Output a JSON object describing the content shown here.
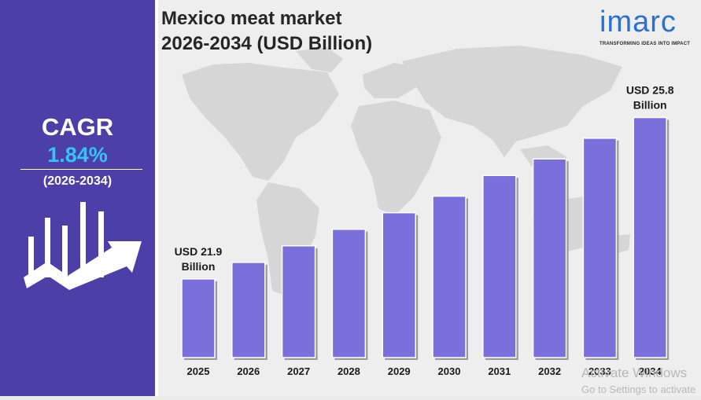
{
  "title_line1": "Mexico meat market",
  "title_line2": "2026-2034 (USD Billion)",
  "cagr": {
    "label": "CAGR",
    "value": "1.84%",
    "period": "(2026-2034)"
  },
  "logo": {
    "name": "imarc",
    "tagline": "TRANSFORMING IDEAS INTO IMPACT"
  },
  "watermark": {
    "line1": "Activate Windows",
    "line2": "Go to Settings to activate"
  },
  "colors": {
    "panel": "#4d3fa8",
    "bar": "#7b6fdb",
    "cagr_value": "#34c5f0",
    "logo": "#2c6fd1"
  },
  "chart_data": {
    "type": "bar",
    "categories": [
      "2025",
      "2026",
      "2027",
      "2028",
      "2029",
      "2030",
      "2031",
      "2032",
      "2033",
      "2034"
    ],
    "values": [
      21.9,
      22.3,
      22.7,
      23.1,
      23.5,
      23.9,
      24.4,
      24.8,
      25.3,
      25.8
    ],
    "annotations": [
      {
        "category": "2025",
        "line1": "USD 21.9",
        "line2": "Billion"
      },
      {
        "category": "2034",
        "line1": "USD 25.8",
        "line2": "Billion"
      }
    ],
    "ylim": [
      20.0,
      26.0
    ],
    "grid": false,
    "legend": "none"
  }
}
